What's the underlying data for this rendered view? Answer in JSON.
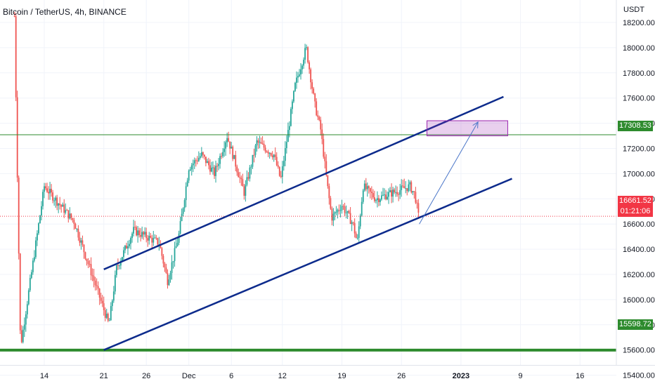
{
  "header": {
    "symbol": "Bitcoin / TetherUS, 4h, BINANCE",
    "currency": "USDT"
  },
  "price_tags": {
    "resistance": "17308.53",
    "support": "15598.72",
    "current": "16661.52",
    "countdown": "01:21:06"
  },
  "colors": {
    "up": "#26a69a",
    "down": "#ef5350",
    "channel": "#0d2b8c",
    "level": "#2e8b2e",
    "target_box": "#9c27b0",
    "arrow": "#4a76c8"
  },
  "chart_data": {
    "type": "candlestick",
    "title": "Bitcoin / TetherUS, 4h, BINANCE",
    "ylabel": "USDT",
    "ylim": [
      15230,
      18380
    ],
    "y_ticks": [
      15400,
      15600,
      15800,
      16000,
      16200,
      16400,
      16600,
      16800,
      17000,
      17200,
      17400,
      17600,
      17800,
      18000,
      18200
    ],
    "x_ticks": [
      {
        "label": "14",
        "day": 14
      },
      {
        "label": "21",
        "day": 21
      },
      {
        "label": "26",
        "day": 26
      },
      {
        "label": "Dec",
        "day": 31
      },
      {
        "label": "6",
        "day": 36
      },
      {
        "label": "12",
        "day": 42
      },
      {
        "label": "19",
        "day": 49
      },
      {
        "label": "26",
        "day": 56
      },
      {
        "label": "2023",
        "day": 63,
        "bold": true
      },
      {
        "label": "9",
        "day": 70
      },
      {
        "label": "16",
        "day": 77
      }
    ],
    "horizontal_levels": [
      {
        "name": "resistance",
        "price": 17308.53
      },
      {
        "name": "support",
        "price": 15598.72
      }
    ],
    "current_price": 16661.52,
    "channel_lines": [
      {
        "name": "upper",
        "from": {
          "day": 21,
          "price": 16240
        },
        "to": {
          "day": 68,
          "price": 17610
        }
      },
      {
        "name": "lower",
        "from": {
          "day": 21,
          "price": 15600
        },
        "to": {
          "day": 69,
          "price": 16960
        }
      }
    ],
    "target_zone": {
      "from_day": 59,
      "to_day": 68.5,
      "price_low": 17300,
      "price_high": 17420
    },
    "projection_arrow": {
      "from": {
        "day": 58.1,
        "price": 16600
      },
      "to": {
        "day": 65,
        "price": 17410
      }
    },
    "key_points": [
      {
        "day": 10.5,
        "price": 18250
      },
      {
        "day": 11.2,
        "price": 15620
      },
      {
        "day": 14.0,
        "price": 16900
      },
      {
        "day": 17.5,
        "price": 16620
      },
      {
        "day": 21.6,
        "price": 15800
      },
      {
        "day": 22.5,
        "price": 16250
      },
      {
        "day": 24.5,
        "price": 16550
      },
      {
        "day": 27.5,
        "price": 16450
      },
      {
        "day": 28.5,
        "price": 16150
      },
      {
        "day": 29.8,
        "price": 16500
      },
      {
        "day": 31.0,
        "price": 17050
      },
      {
        "day": 32.5,
        "price": 17150
      },
      {
        "day": 34.0,
        "price": 17000
      },
      {
        "day": 35.5,
        "price": 17300
      },
      {
        "day": 37.5,
        "price": 16850
      },
      {
        "day": 39.0,
        "price": 17250
      },
      {
        "day": 41.0,
        "price": 17150
      },
      {
        "day": 41.8,
        "price": 16950
      },
      {
        "day": 43.5,
        "price": 17700
      },
      {
        "day": 44.8,
        "price": 18000
      },
      {
        "day": 45.8,
        "price": 17550
      },
      {
        "day": 46.5,
        "price": 17350
      },
      {
        "day": 47.3,
        "price": 16900
      },
      {
        "day": 47.8,
        "price": 16650
      },
      {
        "day": 49.0,
        "price": 16750
      },
      {
        "day": 50.3,
        "price": 16600
      },
      {
        "day": 50.8,
        "price": 16450
      },
      {
        "day": 51.5,
        "price": 16900
      },
      {
        "day": 53.0,
        "price": 16800
      },
      {
        "day": 55.0,
        "price": 16850
      },
      {
        "day": 57.0,
        "price": 16900
      },
      {
        "day": 57.6,
        "price": 16830
      },
      {
        "day": 58.1,
        "price": 16620
      }
    ]
  }
}
